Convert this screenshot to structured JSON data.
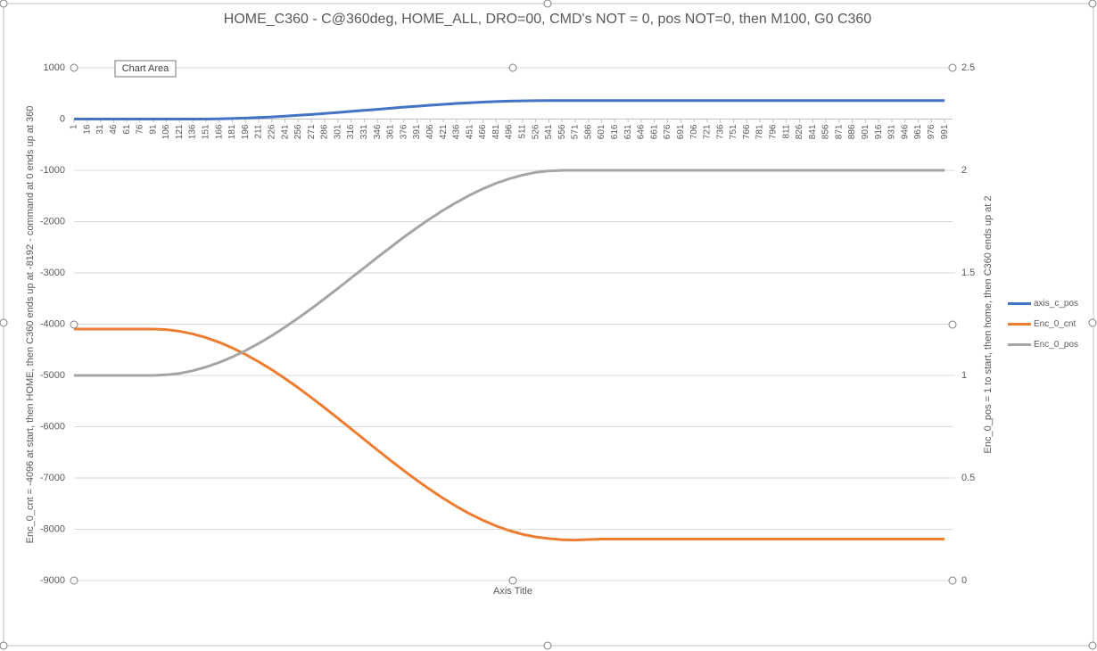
{
  "chart_data": {
    "type": "line",
    "title": "HOME_C360 - C@360deg, HOME_ALL, DRO=00, CMD's NOT = 0, pos NOT=0, then M100, G0 C360",
    "annotation": "Chart Area",
    "x_label": "Axis Title",
    "y_label": "Enc_0_cnt = -4096 at start, then HOME, then C360 ends up at -8192 - command at 0 ends up at 360",
    "y2_label": "Enc_0_pos = 1 to start, then home, then C360 ends up at 2",
    "x": [
      1,
      16,
      31,
      46,
      61,
      76,
      91,
      106,
      121,
      136,
      151,
      166,
      181,
      196,
      211,
      226,
      241,
      256,
      271,
      286,
      301,
      316,
      331,
      346,
      361,
      376,
      391,
      406,
      421,
      436,
      451,
      466,
      481,
      496,
      511,
      526,
      541,
      556,
      571,
      586,
      601,
      616,
      631,
      646,
      661,
      676,
      691,
      706,
      721,
      736,
      751,
      766,
      781,
      796,
      811,
      826,
      841,
      856,
      871,
      886,
      901,
      916,
      931,
      946,
      961,
      976,
      991
    ],
    "xticks": [
      1,
      16,
      31,
      46,
      61,
      76,
      91,
      106,
      121,
      136,
      151,
      166,
      181,
      196,
      211,
      226,
      241,
      256,
      271,
      286,
      301,
      316,
      331,
      346,
      361,
      376,
      391,
      406,
      421,
      436,
      451,
      466,
      481,
      496,
      511,
      526,
      541,
      556,
      571,
      586,
      601,
      616,
      631,
      646,
      661,
      676,
      691,
      706,
      721,
      736,
      751,
      766,
      781,
      796,
      811,
      826,
      841,
      856,
      871,
      886,
      901,
      916,
      931,
      946,
      961,
      976,
      991
    ],
    "xlim": [
      1,
      1000
    ],
    "ylim": [
      -9000,
      1000
    ],
    "yticks": [
      -9000,
      -8000,
      -7000,
      -6000,
      -5000,
      -4000,
      -3000,
      -2000,
      -1000,
      0,
      1000
    ],
    "y2lim": [
      0,
      2.5
    ],
    "y2ticks": [
      0,
      0.5,
      1,
      1.5,
      2,
      2.5
    ],
    "grid": true,
    "legend": "right",
    "series": [
      {
        "name": "axis_c_pos",
        "color": "#4472c4",
        "values": [
          0,
          0,
          0,
          0,
          0,
          0,
          0,
          0,
          0,
          0,
          1,
          5,
          11,
          19,
          30,
          42,
          56,
          73,
          90,
          109,
          128,
          149,
          170,
          190,
          211,
          232,
          251,
          270,
          287,
          304,
          318,
          330,
          341,
          349,
          355,
          359,
          360,
          360,
          360,
          360,
          360,
          360,
          360,
          360,
          360,
          360,
          360,
          360,
          360,
          360,
          360,
          360,
          360,
          360,
          360,
          360,
          360,
          360,
          360,
          360,
          360,
          360,
          360,
          360,
          360,
          360,
          360
        ]
      },
      {
        "name": "Enc_0_cnt",
        "color": "#ed7d31",
        "values": [
          -4096,
          -4096,
          -4096,
          -4096,
          -4096,
          -4096,
          -4096,
          -4107,
          -4138,
          -4190,
          -4262,
          -4353,
          -4463,
          -4590,
          -4733,
          -4890,
          -5061,
          -5242,
          -5433,
          -5631,
          -5834,
          -6040,
          -6248,
          -6454,
          -6657,
          -6855,
          -7046,
          -7227,
          -7398,
          -7555,
          -7698,
          -7825,
          -7935,
          -8026,
          -8098,
          -8150,
          -8181,
          -8205,
          -8210,
          -8200,
          -8192,
          -8192,
          -8192,
          -8192,
          -8192,
          -8192,
          -8192,
          -8192,
          -8192,
          -8192,
          -8192,
          -8192,
          -8192,
          -8192,
          -8192,
          -8192,
          -8192,
          -8192,
          -8192,
          -8192,
          -8192,
          -8192,
          -8192,
          -8192,
          -8192,
          -8192,
          -8192
        ]
      },
      {
        "name": "Enc_0_pos",
        "color": "#a5a5a5",
        "axis": "y2",
        "values": [
          1,
          1,
          1,
          1,
          1,
          1,
          1,
          1.003,
          1.01,
          1.023,
          1.041,
          1.063,
          1.09,
          1.121,
          1.156,
          1.194,
          1.236,
          1.28,
          1.326,
          1.375,
          1.424,
          1.475,
          1.525,
          1.576,
          1.625,
          1.674,
          1.72,
          1.764,
          1.806,
          1.844,
          1.879,
          1.91,
          1.937,
          1.959,
          1.977,
          1.99,
          1.997,
          2,
          2,
          2,
          2,
          2,
          2,
          2,
          2,
          2,
          2,
          2,
          2,
          2,
          2,
          2,
          2,
          2,
          2,
          2,
          2,
          2,
          2,
          2,
          2,
          2,
          2,
          2,
          2,
          2,
          2
        ]
      }
    ]
  }
}
